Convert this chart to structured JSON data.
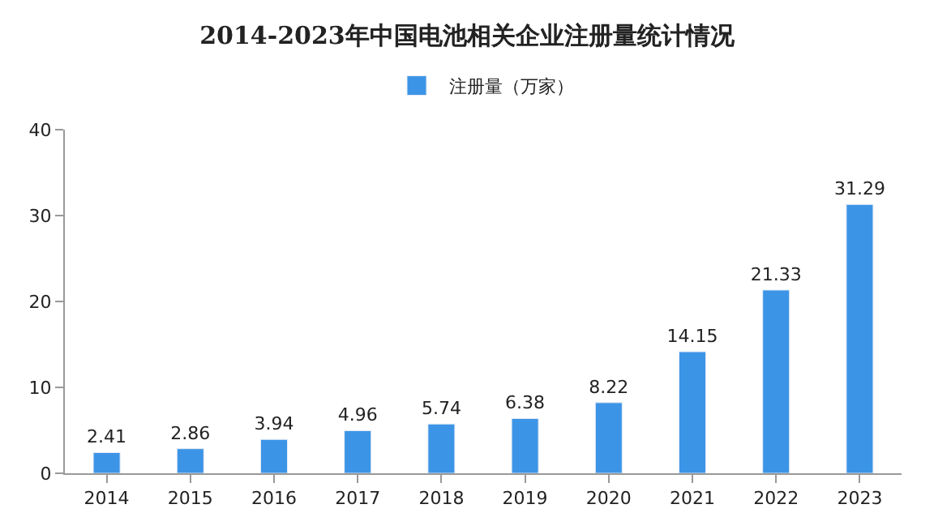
{
  "chart_data": {
    "type": "bar",
    "title": "2014-2023年中国电池相关企业注册量统计情况",
    "categories": [
      "2014",
      "2015",
      "2016",
      "2017",
      "2018",
      "2019",
      "2020",
      "2021",
      "2022",
      "2023"
    ],
    "series": [
      {
        "name": "注册量（万家）",
        "color": "#3c94e6",
        "values": [
          2.41,
          2.86,
          3.94,
          4.96,
          5.74,
          6.38,
          8.22,
          14.15,
          21.33,
          31.29
        ]
      }
    ],
    "ylim": [
      0,
      40
    ],
    "yticks": [
      0,
      10,
      20,
      30,
      40
    ],
    "legend": "top",
    "data_labels": true
  }
}
